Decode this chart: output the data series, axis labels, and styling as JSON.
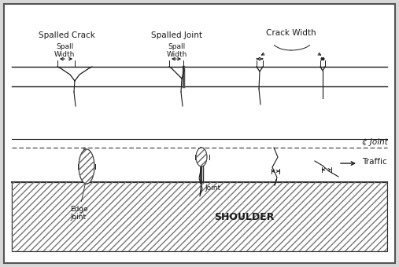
{
  "bg_color": "#d8d8d8",
  "panel_bg": "#ffffff",
  "line_color": "#1a1a1a",
  "gray_color": "#888888",
  "labels": {
    "spalled_crack": "Spalled Crack",
    "spalled_joint": "Spalled Joint",
    "crack_width": "Crack Width",
    "spall_width": "Spall\nWidth",
    "cl_joint": "¢ Joint",
    "traffic": "Traffic",
    "shoulder": "SHOULDER",
    "joint": "Joint",
    "edge_joint": "Edge\nJoint"
  },
  "fs_main": 7.5,
  "fs_small": 6.5,
  "fs_shoulder": 9.0
}
